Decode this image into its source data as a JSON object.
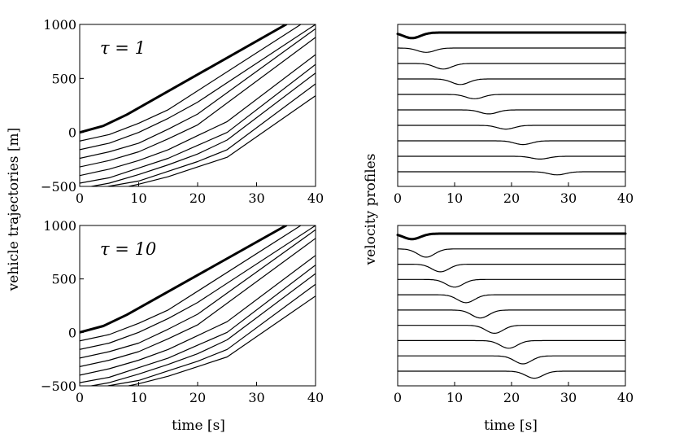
{
  "figure": {
    "ylabel_left": "vehicle trajectories [m]",
    "ylabel_right": "velocity profiles",
    "xlabel_bottom_left": "time [s]",
    "xlabel_bottom_right": "time [s]"
  },
  "chart_data": [
    {
      "id": "traj_tau1",
      "type": "line",
      "annotation": "τ = 1",
      "xlim": [
        0,
        40
      ],
      "ylim": [
        -500,
        1000
      ],
      "xticks": [
        0,
        10,
        20,
        30,
        40
      ],
      "yticks": [
        -500,
        0,
        500,
        1000
      ],
      "xticklabels": [
        "0",
        "10",
        "20",
        "30",
        "40"
      ],
      "yticklabels": [
        "−500",
        "0",
        "500",
        "1000"
      ],
      "series": [
        {
          "role": "lead",
          "x": [
            0,
            4,
            8,
            35
          ],
          "y": [
            0,
            60,
            165,
            1000
          ]
        },
        {
          "x": [
            0,
            5,
            10,
            15,
            37.5
          ],
          "y": [
            -80,
            -20,
            85,
            210,
            1000
          ]
        },
        {
          "x": [
            0,
            5,
            10,
            15,
            20,
            40
          ],
          "y": [
            -160,
            -100,
            0,
            130,
            280,
            1000
          ]
        },
        {
          "x": [
            0,
            5,
            10,
            15,
            20,
            40
          ],
          "y": [
            -240,
            -180,
            -100,
            30,
            170,
            960
          ]
        },
        {
          "x": [
            0,
            5,
            10,
            15,
            20,
            40
          ],
          "y": [
            -320,
            -260,
            -180,
            -60,
            70,
            880
          ]
        },
        {
          "x": [
            0,
            5,
            10,
            15,
            20,
            25,
            40
          ],
          "y": [
            -400,
            -340,
            -260,
            -160,
            -30,
            100,
            720
          ]
        },
        {
          "x": [
            0,
            5,
            10,
            15,
            20,
            25,
            40
          ],
          "y": [
            -470,
            -420,
            -330,
            -240,
            -120,
            0,
            630
          ]
        },
        {
          "x": [
            2,
            5,
            10,
            15,
            20,
            25,
            40
          ],
          "y": [
            -500,
            -470,
            -390,
            -300,
            -200,
            -70,
            550
          ]
        },
        {
          "x": [
            4.8,
            10,
            15,
            20,
            25,
            40
          ],
          "y": [
            -500,
            -450,
            -360,
            -270,
            -160,
            450
          ]
        },
        {
          "x": [
            8.3,
            10,
            15,
            20,
            25,
            40
          ],
          "y": [
            -500,
            -480,
            -410,
            -320,
            -230,
            340
          ]
        }
      ]
    },
    {
      "id": "vel_tau1",
      "type": "line",
      "xlim": [
        0,
        40
      ],
      "xticks": [
        0,
        10,
        20,
        30,
        40
      ],
      "xticklabels": [
        "0",
        "10",
        "20",
        "30",
        "40"
      ],
      "baselines": [
        0,
        1,
        2,
        3,
        4,
        5,
        6,
        7,
        8,
        9
      ],
      "dip_center": [
        2.5,
        5,
        8,
        11,
        13.5,
        16,
        19,
        22,
        25,
        28
      ],
      "dip_depth": [
        0.36,
        0.28,
        0.36,
        0.36,
        0.28,
        0.26,
        0.24,
        0.24,
        0.18,
        0.2
      ]
    },
    {
      "id": "traj_tau10",
      "type": "line",
      "annotation": "τ = 10",
      "xlim": [
        0,
        40
      ],
      "ylim": [
        -500,
        1000
      ],
      "xticks": [
        0,
        10,
        20,
        30,
        40
      ],
      "yticks": [
        -500,
        0,
        500,
        1000
      ],
      "xticklabels": [
        "0",
        "10",
        "20",
        "30",
        "40"
      ],
      "yticklabels": [
        "−500",
        "0",
        "500",
        "1000"
      ],
      "series": [
        {
          "role": "lead",
          "x": [
            0,
            4,
            8,
            35
          ],
          "y": [
            0,
            60,
            165,
            1000
          ]
        },
        {
          "x": [
            0,
            5,
            10,
            15,
            37.5
          ],
          "y": [
            -80,
            -20,
            85,
            210,
            1000
          ]
        },
        {
          "x": [
            0,
            5,
            10,
            15,
            20,
            40
          ],
          "y": [
            -160,
            -100,
            0,
            130,
            280,
            1000
          ]
        },
        {
          "x": [
            0,
            5,
            10,
            15,
            20,
            40
          ],
          "y": [
            -240,
            -180,
            -100,
            30,
            170,
            960
          ]
        },
        {
          "x": [
            0,
            5,
            10,
            15,
            20,
            40
          ],
          "y": [
            -320,
            -260,
            -180,
            -60,
            70,
            880
          ]
        },
        {
          "x": [
            0,
            5,
            10,
            15,
            20,
            25,
            40
          ],
          "y": [
            -400,
            -340,
            -260,
            -160,
            -30,
            100,
            720
          ]
        },
        {
          "x": [
            0,
            5,
            10,
            15,
            20,
            25,
            40
          ],
          "y": [
            -470,
            -420,
            -330,
            -240,
            -120,
            0,
            630
          ]
        },
        {
          "x": [
            2,
            5,
            10,
            15,
            20,
            25,
            40
          ],
          "y": [
            -500,
            -470,
            -390,
            -300,
            -200,
            -70,
            550
          ]
        },
        {
          "x": [
            4.8,
            10,
            15,
            20,
            25,
            40
          ],
          "y": [
            -500,
            -450,
            -360,
            -270,
            -160,
            450
          ]
        },
        {
          "x": [
            8.3,
            10,
            15,
            20,
            25,
            40
          ],
          "y": [
            -500,
            -480,
            -410,
            -320,
            -230,
            340
          ]
        }
      ]
    },
    {
      "id": "vel_tau10",
      "type": "line",
      "xlim": [
        0,
        40
      ],
      "xticks": [
        0,
        10,
        20,
        30,
        40
      ],
      "xticklabels": [
        "0",
        "10",
        "20",
        "30",
        "40"
      ],
      "baselines": [
        0,
        1,
        2,
        3,
        4,
        5,
        6,
        7,
        8,
        9
      ],
      "dip_center": [
        2.5,
        5,
        7.5,
        10,
        12,
        14.5,
        17,
        19.5,
        22,
        24
      ],
      "dip_depth": [
        0.36,
        0.54,
        0.5,
        0.5,
        0.52,
        0.52,
        0.52,
        0.5,
        0.52,
        0.46
      ]
    }
  ]
}
